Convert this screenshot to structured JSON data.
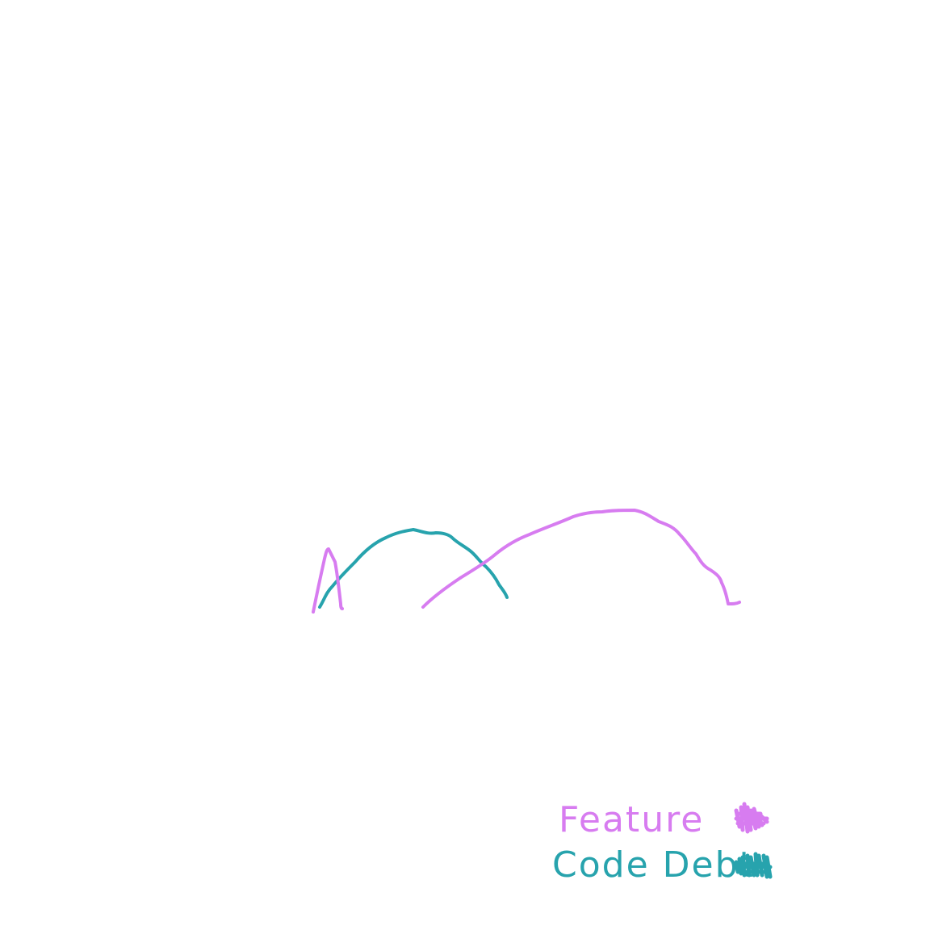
{
  "drawing": {
    "colors": {
      "feature": "#d77cf0",
      "code_debt": "#27a3ad",
      "background": "#ffffff"
    }
  },
  "legend": {
    "items": [
      {
        "id": "feature",
        "label": "Feature",
        "color": "#d77cf0"
      },
      {
        "id": "code_debt",
        "label": "Code Debt",
        "color": "#27a3ad"
      }
    ]
  }
}
